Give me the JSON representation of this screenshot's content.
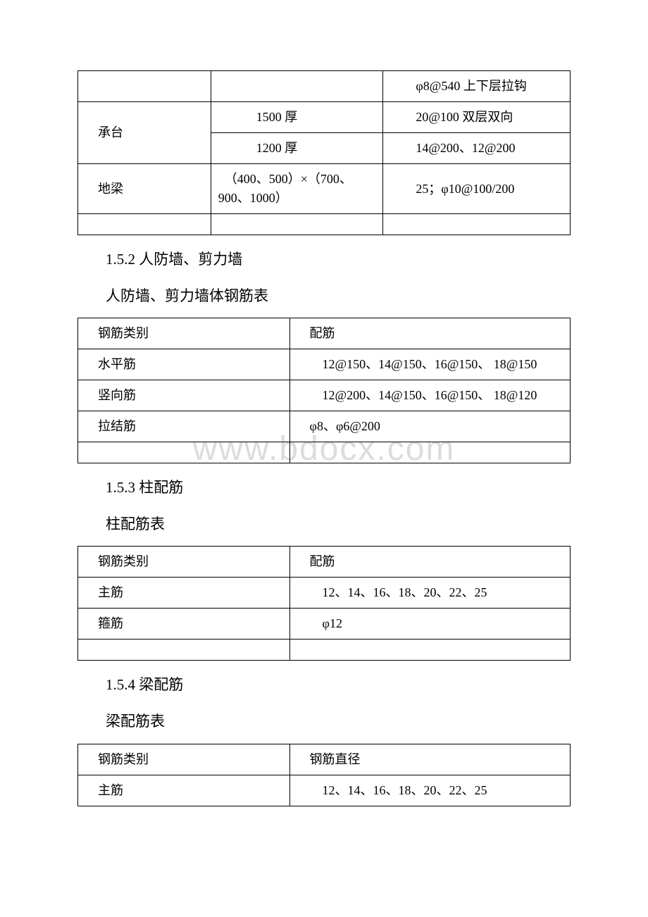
{
  "watermark": "www.bdocx.com",
  "table1": {
    "columns": [
      "t1-c1",
      "t1-c2",
      "t1-c3"
    ],
    "r0": {
      "c3": "　　φ8@540 上下层拉钩"
    },
    "r1": {
      "c1": "　承台",
      "c2": "　　　1500 厚",
      "c3": "　　20@100 双层双向"
    },
    "r2": {
      "c2": "　　　1200 厚",
      "c3": "　　14@200、12@200"
    },
    "r3": {
      "c1": "　地梁",
      "c2": "　（400、500）×（700、900、1000）",
      "c3": "　　25；φ10@100/200"
    }
  },
  "heading_1_5_2": "1.5.2 人防墙、剪力墙",
  "heading_1_5_2_sub": "人防墙、剪力墙体钢筋表",
  "table2": {
    "columns": [
      "t2-c1",
      "t2-c2"
    ],
    "h0": {
      "c1": "　钢筋类别",
      "c2": "　配筋"
    },
    "r1": {
      "c1": "　水平筋",
      "c2": "　　12@150、14@150、16@150、 18@150"
    },
    "r2": {
      "c1": "　竖向筋",
      "c2": "　　12@200、14@150、16@150、 18@120"
    },
    "r3": {
      "c1": "　拉结筋",
      "c2": "　φ8、φ6@200"
    }
  },
  "heading_1_5_3": "1.5.3 柱配筋",
  "heading_1_5_3_sub": "柱配筋表",
  "table3": {
    "columns": [
      "t2-c1",
      "t2-c2"
    ],
    "h0": {
      "c1": "　钢筋类别",
      "c2": "　配筋"
    },
    "r1": {
      "c1": "　主筋",
      "c2": "　　12、14、16、18、20、22、25"
    },
    "r2": {
      "c1": "　箍筋",
      "c2": "　　φ12"
    }
  },
  "heading_1_5_4": "1.5.4 梁配筋",
  "heading_1_5_4_sub": "梁配筋表",
  "table4": {
    "columns": [
      "t2-c1",
      "t2-c2"
    ],
    "h0": {
      "c1": "　钢筋类别",
      "c2": "　钢筋直径"
    },
    "r1": {
      "c1": "　主筋",
      "c2": "　　12、14、16、18、20、22、25"
    }
  }
}
